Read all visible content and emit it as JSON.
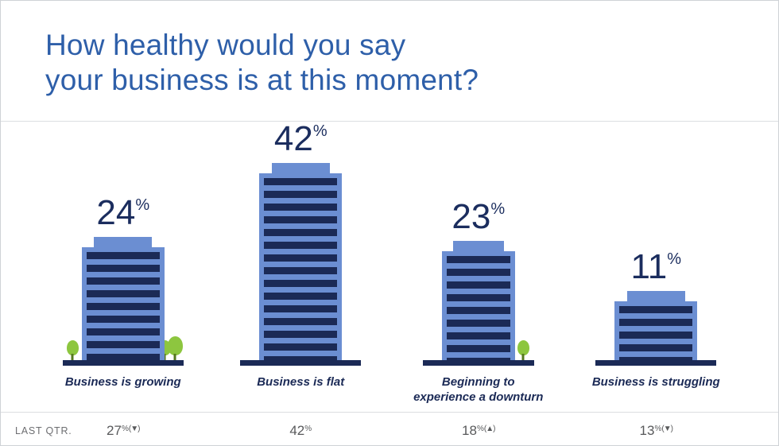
{
  "title": {
    "line1": "How healthy would you say",
    "line2": "your business is at this moment?"
  },
  "chart_data": {
    "type": "bar",
    "title": "How healthy would you say your business is at this moment?",
    "categories": [
      "Business is growing",
      "Business is flat",
      "Beginning to experience a downturn",
      "Business is struggling"
    ],
    "values": [
      24,
      42,
      23,
      11
    ],
    "unit": "%",
    "ylim": [
      0,
      50
    ],
    "legend": "none",
    "style": "pictorial bars drawn as striped office buildings with trees"
  },
  "footer": {
    "label": "LAST QTR.",
    "values": [
      {
        "num": "27",
        "change": "(▼)"
      },
      {
        "num": "42",
        "change": ""
      },
      {
        "num": "18",
        "change": "(▲)"
      },
      {
        "num": "13",
        "change": "(▼)"
      }
    ]
  },
  "colors": {
    "title_blue": "#2e5fa9",
    "navy": "#1b2a56",
    "building_light_blue": "#6b8ed2",
    "tree_green": "#8dc63f",
    "footer_gray": "#58595b"
  }
}
